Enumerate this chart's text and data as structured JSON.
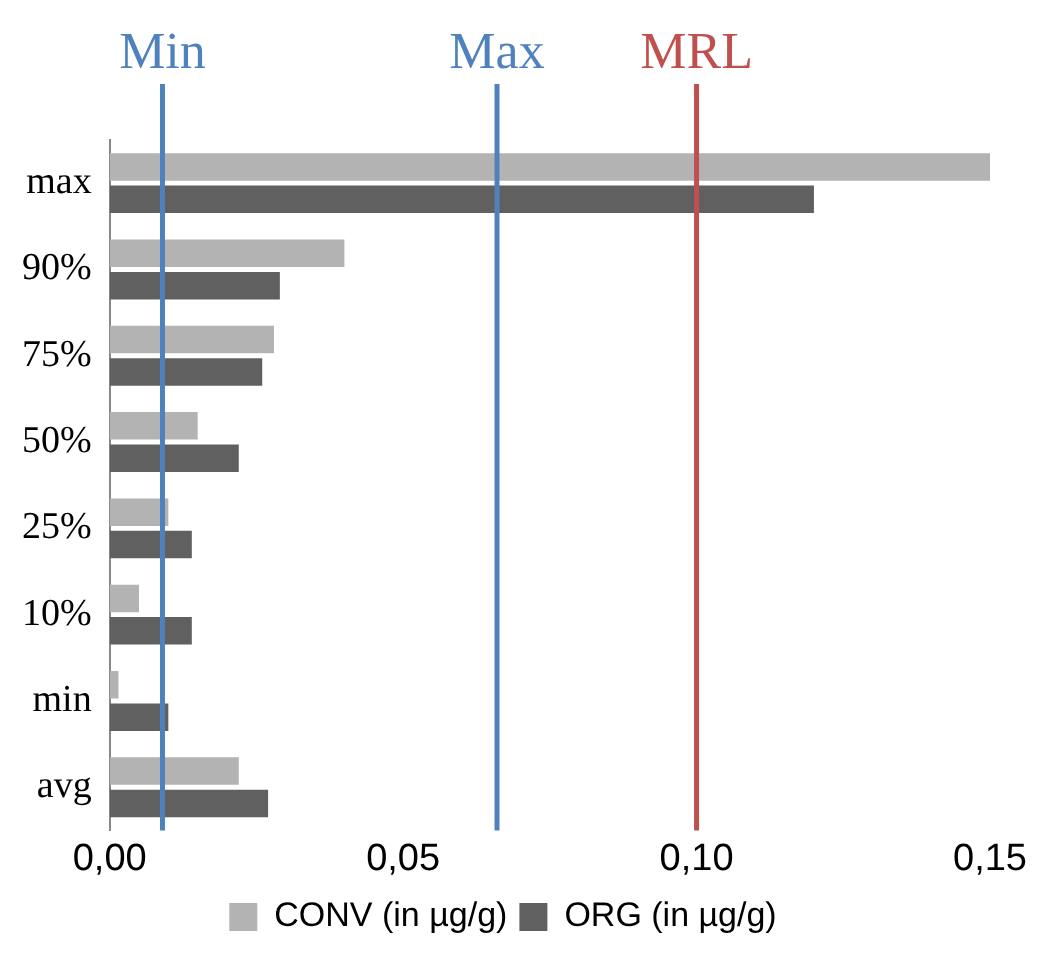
{
  "chart_data": {
    "type": "bar",
    "orientation": "horizontal",
    "categories": [
      "max",
      "90%",
      "75%",
      "50%",
      "25%",
      "10%",
      "min",
      "avg"
    ],
    "series": [
      {
        "name": "CONV (in µg/g)",
        "color": "#b3b3b3",
        "values": [
          0.15,
          0.04,
          0.028,
          0.015,
          0.01,
          0.005,
          0.0015,
          0.022
        ]
      },
      {
        "name": "ORG (in µg/g)",
        "color": "#606060",
        "values": [
          0.12,
          0.029,
          0.026,
          0.022,
          0.014,
          0.014,
          0.01,
          0.027
        ]
      }
    ],
    "xlim": [
      0,
      0.15
    ],
    "xticks": [
      {
        "value": 0,
        "label": "0,00"
      },
      {
        "value": 0.05,
        "label": "0,05"
      },
      {
        "value": 0.1,
        "label": "0,10"
      },
      {
        "value": 0.15,
        "label": "0,15"
      }
    ],
    "ref_lines": [
      {
        "axis": "x",
        "value": 0.009,
        "label": "Min",
        "color": "#4f81bd"
      },
      {
        "axis": "x",
        "value": 0.066,
        "label": "Max",
        "color": "#4f81bd"
      },
      {
        "axis": "x",
        "value": 0.1,
        "label": "MRL",
        "color": "#c0504d"
      }
    ],
    "grid": false,
    "legend": "bottom"
  }
}
